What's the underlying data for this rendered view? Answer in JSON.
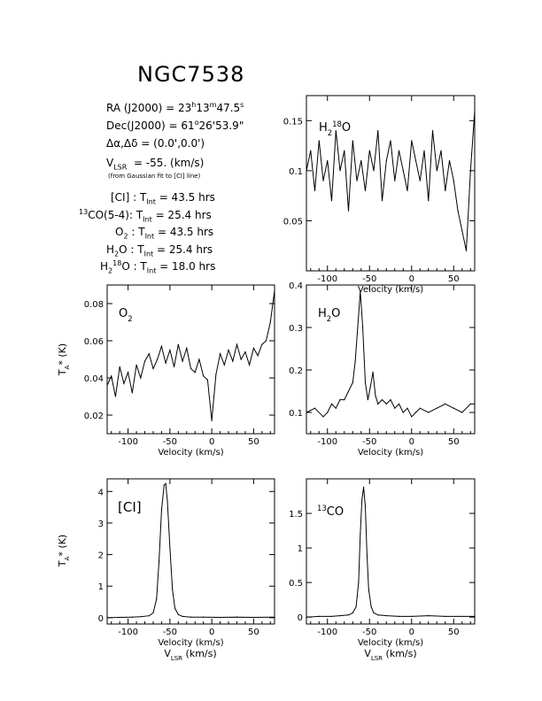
{
  "header": {
    "source": "NGC7538",
    "ra": "RA (J2000) = 23h13m47.5s",
    "dec": "Dec(J2000) = 61°26'53.9\"",
    "offset": "Δα,Δδ = (0.0',0.0')",
    "vlsr": "VLSR = -55. (km/s)",
    "vlsr_note": "(from Gaussian fit to [CI] line)",
    "integrations": [
      "[CI] : TInt = 43.5 hrs",
      "13CO(5-4): TInt = 25.4 hrs",
      "O2 : TInt = 43.5 hrs",
      "H2O : TInt = 25.4 hrs",
      "H2 18O : TInt = 18.0 hrs"
    ]
  },
  "axis_text": {
    "velocity": "Velocity (km/s)",
    "vlsr": "VLSR (km/s)",
    "ta": "TA* (K)"
  },
  "chart_data": [
    {
      "type": "line",
      "panel": "H2 18O",
      "label": "H2 18O",
      "xlim": [
        -125,
        75
      ],
      "ylim": [
        0.0,
        0.175
      ],
      "xticks": [
        -100,
        -50,
        0,
        50
      ],
      "yticks": [
        0.05,
        0.1,
        0.15
      ],
      "ytick_labels": [
        "0.05",
        "0.1",
        "0.15"
      ],
      "xlabel": "Velocity (km/s)",
      "ylabel": "",
      "series": [
        {
          "x": [
            -125,
            -120,
            -115,
            -110,
            -105,
            -100,
            -95,
            -90,
            -85,
            -80,
            -75,
            -70,
            -65,
            -60,
            -55,
            -50,
            -45,
            -40,
            -35,
            -30,
            -25,
            -20,
            -15,
            -10,
            -5,
            0,
            5,
            10,
            15,
            20,
            25,
            30,
            35,
            40,
            45,
            50,
            55,
            60,
            65,
            70,
            75
          ],
          "y": [
            0.1,
            0.12,
            0.08,
            0.13,
            0.09,
            0.11,
            0.07,
            0.14,
            0.1,
            0.12,
            0.06,
            0.13,
            0.09,
            0.11,
            0.08,
            0.12,
            0.1,
            0.14,
            0.07,
            0.11,
            0.13,
            0.09,
            0.12,
            0.1,
            0.08,
            0.13,
            0.11,
            0.09,
            0.12,
            0.07,
            0.14,
            0.1,
            0.12,
            0.08,
            0.11,
            0.09,
            0.06,
            0.04,
            0.02,
            0.1,
            0.16
          ]
        }
      ]
    },
    {
      "type": "line",
      "panel": "O2",
      "label": "O2",
      "xlim": [
        -125,
        75
      ],
      "ylim": [
        0.01,
        0.09
      ],
      "xticks": [
        -100,
        -50,
        0,
        50
      ],
      "yticks": [
        0.02,
        0.04,
        0.06,
        0.08
      ],
      "ytick_labels": [
        "0.02",
        "0.04",
        "0.06",
        "0.08"
      ],
      "xlabel": "Velocity (km/s)",
      "ylabel": "TA* (K)",
      "series": [
        {
          "x": [
            -125,
            -120,
            -115,
            -110,
            -105,
            -100,
            -95,
            -90,
            -85,
            -80,
            -75,
            -70,
            -65,
            -60,
            -55,
            -50,
            -45,
            -40,
            -35,
            -30,
            -25,
            -20,
            -15,
            -10,
            -5,
            0,
            5,
            10,
            15,
            20,
            25,
            30,
            35,
            40,
            45,
            50,
            55,
            60,
            65,
            70,
            75
          ],
          "y": [
            0.036,
            0.041,
            0.03,
            0.046,
            0.037,
            0.043,
            0.032,
            0.047,
            0.04,
            0.049,
            0.053,
            0.045,
            0.05,
            0.057,
            0.048,
            0.055,
            0.046,
            0.058,
            0.049,
            0.056,
            0.045,
            0.043,
            0.05,
            0.041,
            0.039,
            0.017,
            0.042,
            0.053,
            0.047,
            0.055,
            0.049,
            0.058,
            0.05,
            0.054,
            0.047,
            0.056,
            0.052,
            0.058,
            0.06,
            0.07,
            0.087
          ]
        }
      ]
    },
    {
      "type": "line",
      "panel": "H2O",
      "label": "H2O",
      "xlim": [
        -125,
        75
      ],
      "ylim": [
        0.05,
        0.4
      ],
      "xticks": [
        -100,
        -50,
        0,
        50
      ],
      "yticks": [
        0.1,
        0.2,
        0.3,
        0.4
      ],
      "ytick_labels": [
        "0.1",
        "0.2",
        "0.3",
        "0.4"
      ],
      "xlabel": "Velocity (km/s)",
      "ylabel": "",
      "series": [
        {
          "x": [
            -125,
            -115,
            -105,
            -100,
            -95,
            -90,
            -85,
            -80,
            -75,
            -70,
            -67,
            -64,
            -61,
            -58,
            -55,
            -52,
            -49,
            -46,
            -43,
            -40,
            -35,
            -30,
            -25,
            -20,
            -15,
            -10,
            -5,
            0,
            5,
            10,
            20,
            30,
            40,
            50,
            60,
            70,
            75
          ],
          "y": [
            0.1,
            0.11,
            0.09,
            0.1,
            0.12,
            0.11,
            0.13,
            0.13,
            0.15,
            0.17,
            0.22,
            0.3,
            0.385,
            0.3,
            0.17,
            0.13,
            0.16,
            0.195,
            0.14,
            0.12,
            0.13,
            0.12,
            0.13,
            0.11,
            0.12,
            0.1,
            0.11,
            0.09,
            0.1,
            0.11,
            0.1,
            0.11,
            0.12,
            0.11,
            0.1,
            0.12,
            0.12
          ]
        }
      ]
    },
    {
      "type": "line",
      "panel": "[CI]",
      "label": "[CI]",
      "xlim": [
        -125,
        75
      ],
      "ylim": [
        -0.2,
        4.4
      ],
      "xticks": [
        -100,
        -50,
        0,
        50
      ],
      "yticks": [
        0,
        1,
        2,
        3,
        4
      ],
      "ytick_labels": [
        "0",
        "1",
        "2",
        "3",
        "4"
      ],
      "xlabel": "Velocity (km/s)",
      "ylabel": "TA* (K)",
      "series": [
        {
          "x": [
            -125,
            -110,
            -95,
            -85,
            -75,
            -70,
            -66,
            -63,
            -60,
            -57,
            -55,
            -53,
            -50,
            -47,
            -44,
            -40,
            -35,
            -25,
            -10,
            10,
            30,
            50,
            75
          ],
          "y": [
            0.0,
            0.01,
            0.02,
            0.03,
            0.06,
            0.15,
            0.6,
            1.8,
            3.4,
            4.2,
            4.25,
            3.7,
            2.2,
            0.9,
            0.3,
            0.1,
            0.04,
            0.02,
            0.02,
            0.01,
            0.02,
            0.01,
            0.02
          ]
        }
      ]
    },
    {
      "type": "line",
      "panel": "13CO",
      "label": "13CO",
      "xlim": [
        -125,
        75
      ],
      "ylim": [
        -0.1,
        2.0
      ],
      "xticks": [
        -100,
        -50,
        0,
        50
      ],
      "yticks": [
        0,
        0.5,
        1,
        1.5
      ],
      "ytick_labels": [
        "0",
        "0.5",
        "1",
        "1.5"
      ],
      "xlabel": "Velocity (km/s)",
      "ylabel": "",
      "series": [
        {
          "x": [
            -125,
            -110,
            -95,
            -85,
            -75,
            -70,
            -66,
            -63,
            -61,
            -59,
            -57,
            -55,
            -53,
            -51,
            -48,
            -45,
            -40,
            -30,
            -15,
            0,
            20,
            40,
            60,
            75
          ],
          "y": [
            0.0,
            0.01,
            0.01,
            0.02,
            0.03,
            0.06,
            0.15,
            0.5,
            1.2,
            1.7,
            1.88,
            1.6,
            0.9,
            0.4,
            0.15,
            0.06,
            0.03,
            0.02,
            0.01,
            0.01,
            0.02,
            0.01,
            0.01,
            0.01
          ]
        }
      ]
    }
  ]
}
